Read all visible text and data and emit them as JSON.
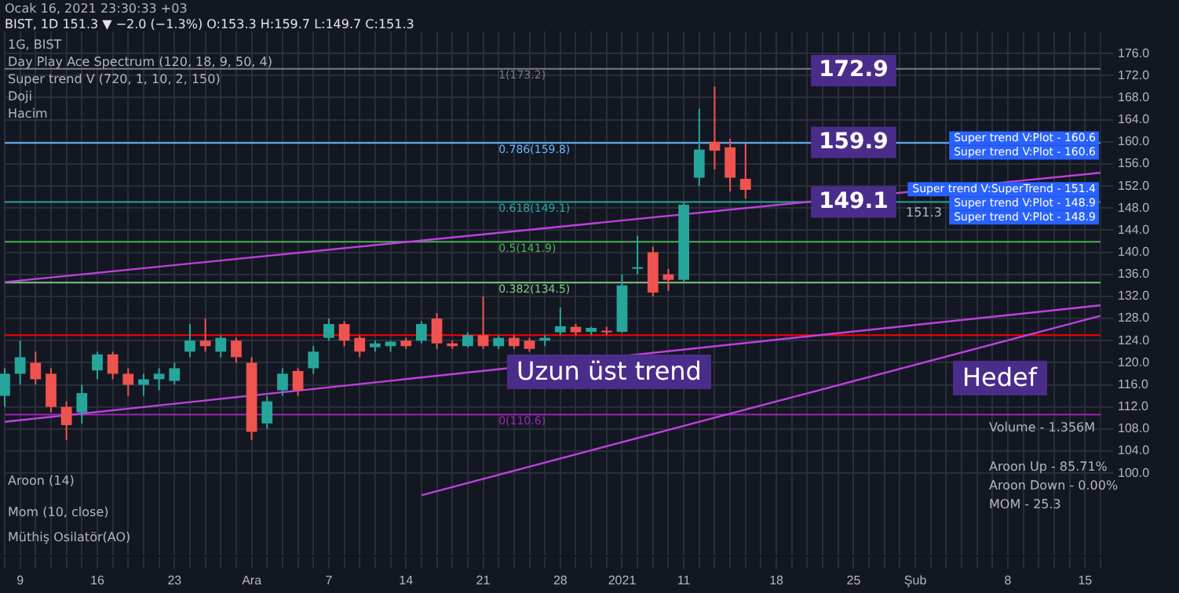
{
  "chart_data": {
    "type": "candlestick",
    "title": "BIST, 1D 151.3 ▼ −2.0 (−1.3%) O:153.3 H:159.7 L:149.7 C:151.3",
    "subtitle": "1G, BIST",
    "categories": [
      null,
      "9",
      null,
      null,
      null,
      null,
      "16",
      null,
      null,
      null,
      null,
      "23",
      null,
      null,
      null,
      null,
      "Ara",
      null,
      null,
      null,
      null,
      "7",
      null,
      null,
      null,
      null,
      "14",
      null,
      null,
      null,
      null,
      "21",
      null,
      null,
      null,
      null,
      "28",
      null,
      null,
      null,
      "2021",
      null,
      null,
      null,
      "11",
      null,
      null,
      null,
      null,
      null,
      "18",
      null,
      null,
      null,
      null,
      "25",
      null,
      null,
      null,
      "Şub",
      null,
      null,
      null,
      null,
      null,
      "8",
      null,
      null,
      null,
      null,
      "15",
      null
    ],
    "ohlc": [
      [
        114,
        119,
        112,
        118
      ],
      [
        118,
        124,
        116,
        121
      ],
      [
        120,
        122,
        116,
        117
      ],
      [
        118,
        119,
        111,
        112
      ],
      [
        112,
        113,
        106,
        108.7
      ],
      [
        111,
        116,
        109,
        114.5
      ],
      [
        118.6,
        122,
        117,
        121.5
      ],
      [
        121.5,
        122,
        117,
        118
      ],
      [
        118,
        119,
        114,
        116
      ],
      [
        116,
        118,
        114,
        117
      ],
      [
        117,
        119,
        115,
        118
      ],
      [
        116.7,
        120,
        116,
        119
      ],
      [
        122,
        127,
        121,
        124
      ],
      [
        124,
        128,
        122,
        123
      ],
      [
        122,
        125,
        121,
        124.5
      ],
      [
        124,
        124.5,
        120,
        121
      ],
      [
        120,
        121,
        106,
        107.5
      ],
      [
        109,
        114,
        108,
        113
      ],
      [
        115,
        119,
        114,
        118
      ],
      [
        118.5,
        119,
        114,
        115
      ],
      [
        119,
        123,
        118,
        122
      ],
      [
        124.5,
        128,
        124,
        127
      ],
      [
        127,
        127.5,
        123,
        124
      ],
      [
        124.5,
        125,
        121,
        122
      ],
      [
        122.8,
        124,
        122,
        123.5
      ],
      [
        123,
        124,
        122,
        123.8
      ],
      [
        124,
        124.5,
        122.5,
        123
      ],
      [
        124,
        127.5,
        123.5,
        127
      ],
      [
        128,
        129,
        122.5,
        123.5
      ],
      [
        123.5,
        124,
        122.5,
        123
      ],
      [
        123,
        125.5,
        122.8,
        125
      ],
      [
        125,
        132,
        122.5,
        123
      ],
      [
        123,
        125,
        122.5,
        124.5
      ],
      [
        124.5,
        125,
        122.5,
        123
      ],
      [
        124,
        124.5,
        122,
        122.5
      ],
      [
        124,
        125,
        123,
        124.5
      ],
      [
        125.5,
        130,
        125,
        126.6
      ],
      [
        126.5,
        127,
        125,
        125.5
      ],
      [
        125.6,
        126.5,
        125,
        126.3
      ],
      [
        125.8,
        126.5,
        125,
        125.5
      ],
      [
        125.6,
        136,
        125.4,
        134
      ],
      [
        137,
        143,
        136,
        137.3
      ],
      [
        140,
        141,
        132,
        132.7
      ],
      [
        136,
        137,
        133,
        135
      ],
      [
        135,
        149,
        134.5,
        148.6
      ],
      [
        153.5,
        166,
        152,
        158.6
      ],
      [
        160,
        170,
        155,
        158.4
      ],
      [
        159,
        160.5,
        151,
        153.5
      ],
      [
        153.3,
        159.7,
        149.7,
        151.3
      ],
      null,
      null,
      null,
      null,
      null,
      null,
      null,
      null,
      null,
      null,
      null,
      null,
      null,
      null,
      null,
      null,
      null,
      null,
      null,
      null,
      null,
      null,
      null
    ],
    "series": [
      {
        "type": "line",
        "color": "#c040e0",
        "values": [
          134.6,
          null,
          null,
          null,
          null,
          null,
          null,
          null,
          null,
          null,
          null,
          null,
          null,
          null,
          null,
          null,
          null,
          null,
          null,
          null,
          null,
          null,
          null,
          null,
          null,
          null,
          null,
          null,
          null,
          null,
          null,
          null,
          null,
          null,
          null,
          null,
          null,
          null,
          null,
          null,
          null,
          null,
          null,
          null,
          null,
          null,
          null,
          null,
          null,
          null,
          null,
          null,
          null,
          null,
          null,
          null,
          null,
          null,
          null,
          null,
          null,
          null,
          null,
          null,
          null,
          null,
          null,
          null,
          null,
          null,
          null,
          154.4
        ]
      },
      {
        "type": "line",
        "color": "#c040e0",
        "values": [
          109.3,
          null,
          null,
          null,
          null,
          null,
          null,
          null,
          null,
          null,
          null,
          null,
          null,
          null,
          null,
          null,
          null,
          null,
          null,
          null,
          null,
          null,
          null,
          null,
          null,
          null,
          null,
          null,
          null,
          null,
          null,
          null,
          null,
          null,
          null,
          null,
          null,
          null,
          null,
          null,
          null,
          null,
          null,
          null,
          null,
          null,
          null,
          null,
          null,
          null,
          null,
          null,
          null,
          null,
          null,
          null,
          null,
          null,
          null,
          null,
          null,
          null,
          null,
          null,
          null,
          null,
          null,
          null,
          null,
          null,
          null,
          130.4
        ]
      },
      {
        "type": "line",
        "color": "#c040e0",
        "values": [
          null,
          null,
          null,
          null,
          null,
          null,
          null,
          null,
          null,
          null,
          null,
          null,
          null,
          null,
          null,
          null,
          null,
          null,
          null,
          null,
          null,
          null,
          null,
          null,
          null,
          null,
          null,
          96,
          null,
          null,
          null,
          null,
          null,
          null,
          null,
          null,
          null,
          null,
          null,
          null,
          null,
          null,
          null,
          null,
          null,
          null,
          null,
          null,
          null,
          null,
          null,
          null,
          null,
          null,
          null,
          null,
          null,
          null,
          null,
          null,
          null,
          null,
          null,
          null,
          null,
          null,
          null,
          null,
          null,
          null,
          null,
          128.5
        ]
      }
    ],
    "ylim": [
      85,
      180
    ],
    "yticks": [
      {
        "value": 100,
        "label": "100.0"
      },
      {
        "value": 104,
        "label": "104.0"
      },
      {
        "value": 108,
        "label": "108.0"
      },
      {
        "value": 112,
        "label": "112.0"
      },
      {
        "value": 116,
        "label": "116.0"
      },
      {
        "value": 120,
        "label": "120.0"
      },
      {
        "value": 124,
        "label": "124.0"
      },
      {
        "value": 128,
        "label": "128.0"
      },
      {
        "value": 132,
        "label": "132.0"
      },
      {
        "value": 136,
        "label": "136.0"
      },
      {
        "value": 140,
        "label": "140.0"
      },
      {
        "value": 144,
        "label": "144.0"
      },
      {
        "value": 148,
        "label": "148.0"
      },
      {
        "value": 152,
        "label": "152.0"
      },
      {
        "value": 156,
        "label": "156.0"
      },
      {
        "value": 160,
        "label": "160.0"
      },
      {
        "value": 164,
        "label": "164.0"
      },
      {
        "value": 168,
        "label": "168.0"
      },
      {
        "value": 172,
        "label": "172.0"
      },
      {
        "value": 176,
        "label": "176.0"
      }
    ],
    "grid": true,
    "legend": false,
    "ref_lines": [
      {
        "axis": "y",
        "value": 173.2,
        "label": "1(173.2)",
        "color": "#787b86"
      },
      {
        "axis": "y",
        "value": 159.8,
        "label": "0.786(159.8)",
        "color": "#64b5f6"
      },
      {
        "axis": "y",
        "value": 149.1,
        "label": "0.618(149.1)",
        "color": "#26a69a"
      },
      {
        "axis": "y",
        "value": 141.9,
        "label": "0.5(141.9)",
        "color": "#4caf50"
      },
      {
        "axis": "y",
        "value": 134.5,
        "label": "0.382(134.5)",
        "color": "#81c784"
      },
      {
        "axis": "y",
        "value": 110.6,
        "label": "0(110.6)",
        "color": "#9c27b0"
      },
      {
        "axis": "y",
        "value": 125,
        "color": "#ff0000"
      }
    ],
    "annotations": [
      "Ocak 16, 2021 23:30:33 +03",
      "Day Play Ace Spectrum (120, 18, 9, 50, 4)",
      "Super trend V (720, 1, 10, 2, 150)",
      "Doji",
      "Hacim",
      "Uzun üst trend",
      "Hedef",
      "Volume - 1.356M",
      "Aroon (14)",
      "Aroon Up - 85.71%",
      "Aroon Down - 0.00%",
      "MOM - 25.3",
      "Mom (10, close)",
      "Müthiş Osilatör(AO)",
      "151.3",
      {
        "text": "172.9",
        "x": "25",
        "y": 172.9
      },
      {
        "text": "159.9",
        "x": "25",
        "y": 159.9
      },
      {
        "text": "149.1",
        "x": "25",
        "y": 149.1
      },
      {
        "text": "Super trend V:Plot - 160.6",
        "y": 160.6
      },
      {
        "text": "Super trend V:Plot - 160.6",
        "y": 160.6
      },
      {
        "text": "Super trend V:SuperTrend - 151.4",
        "y": 151.4
      },
      {
        "text": "Super trend V:Plot - 148.9",
        "y": 148.9
      },
      {
        "text": "Super trend V:Plot - 148.9",
        "y": 148.9
      }
    ]
  }
}
